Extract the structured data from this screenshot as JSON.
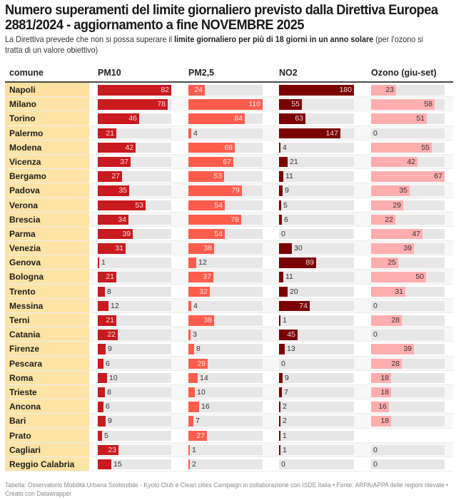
{
  "header": {
    "title": "Numero superamenti del limite giornaliero previsto dalla Direttiva Europea 2881/2024 - aggiornamento a fine NOVEMBRE 2025",
    "subtitle_pre": "La Direttiva prevede che non si possa superare il ",
    "subtitle_bold": "limite giornaliero per più di 18 giorni in un anno solare",
    "subtitle_post": " (per l'ozono si tratta di un valore obiettivo)"
  },
  "colors": {
    "PM10": "#c91a1f",
    "PM2_5": "#ff5c4d",
    "NO2": "#7a0000",
    "Ozono": "#ffadad",
    "name_column": "#fee3a5",
    "bar_background": "#e6e6e6"
  },
  "footer": {
    "text": "Tabella: Osservatorio Mobilità Urbana Sostenibile - Kyoto Club e Clean cities Campaign in collaborazione con ISDE Italia • Fonte: ARPA/APPA delle regioni rilevate • Creato con Datawrapper"
  },
  "chart_data": {
    "type": "table",
    "title": "Numero superamenti del limite giornaliero previsto dalla Direttiva Europea 2881/2024 - aggiornamento a fine NOVEMBRE 2025",
    "columns": [
      "comune",
      "PM10",
      "PM2,5",
      "NO2",
      "Ozono (giu-set)"
    ],
    "series_keys": [
      "PM10",
      "PM2_5",
      "NO2",
      "Ozono"
    ],
    "rows": [
      {
        "comune": "Napoli",
        "PM10": 82,
        "PM2_5": 24,
        "NO2": 180,
        "Ozono": 23
      },
      {
        "comune": "Milano",
        "PM10": 78,
        "PM2_5": 110,
        "NO2": 55,
        "Ozono": 58
      },
      {
        "comune": "Torino",
        "PM10": 46,
        "PM2_5": 84,
        "NO2": 63,
        "Ozono": 51
      },
      {
        "comune": "Palermo",
        "PM10": 21,
        "PM2_5": 4,
        "NO2": 147,
        "Ozono": 0
      },
      {
        "comune": "Modena",
        "PM10": 42,
        "PM2_5": 69,
        "NO2": 4,
        "Ozono": 55
      },
      {
        "comune": "Vicenza",
        "PM10": 37,
        "PM2_5": 67,
        "NO2": 21,
        "Ozono": 42
      },
      {
        "comune": "Bergamo",
        "PM10": 27,
        "PM2_5": 53,
        "NO2": 11,
        "Ozono": 67
      },
      {
        "comune": "Padova",
        "PM10": 35,
        "PM2_5": 79,
        "NO2": 9,
        "Ozono": 35
      },
      {
        "comune": "Verona",
        "PM10": 53,
        "PM2_5": 54,
        "NO2": 5,
        "Ozono": 29
      },
      {
        "comune": "Brescia",
        "PM10": 34,
        "PM2_5": 78,
        "NO2": 6,
        "Ozono": 22
      },
      {
        "comune": "Parma",
        "PM10": 39,
        "PM2_5": 54,
        "NO2": 0,
        "Ozono": 47
      },
      {
        "comune": "Venezia",
        "PM10": 31,
        "PM2_5": 38,
        "NO2": 30,
        "Ozono": 39
      },
      {
        "comune": "Genova",
        "PM10": 1,
        "PM2_5": 12,
        "NO2": 89,
        "Ozono": 25
      },
      {
        "comune": "Bologna",
        "PM10": 21,
        "PM2_5": 37,
        "NO2": 11,
        "Ozono": 50
      },
      {
        "comune": "Trento",
        "PM10": 8,
        "PM2_5": 32,
        "NO2": 20,
        "Ozono": 31
      },
      {
        "comune": "Messina",
        "PM10": 12,
        "PM2_5": 4,
        "NO2": 74,
        "Ozono": 0
      },
      {
        "comune": "Terni",
        "PM10": 21,
        "PM2_5": 38,
        "NO2": 1,
        "Ozono": 28
      },
      {
        "comune": "Catania",
        "PM10": 22,
        "PM2_5": 3,
        "NO2": 45,
        "Ozono": 0
      },
      {
        "comune": "Firenze",
        "PM10": 9,
        "PM2_5": 8,
        "NO2": 13,
        "Ozono": 39
      },
      {
        "comune": "Pescara",
        "PM10": 6,
        "PM2_5": 29,
        "NO2": 0,
        "Ozono": 28
      },
      {
        "comune": "Roma",
        "PM10": 10,
        "PM2_5": 14,
        "NO2": 9,
        "Ozono": 18
      },
      {
        "comune": "Trieste",
        "PM10": 8,
        "PM2_5": 10,
        "NO2": 7,
        "Ozono": 18
      },
      {
        "comune": "Ancona",
        "PM10": 6,
        "PM2_5": 16,
        "NO2": 2,
        "Ozono": 16
      },
      {
        "comune": "Bari",
        "PM10": 9,
        "PM2_5": 7,
        "NO2": 2,
        "Ozono": 18
      },
      {
        "comune": "Prato",
        "PM10": 5,
        "PM2_5": 27,
        "NO2": 1,
        "Ozono": null
      },
      {
        "comune": "Cagliari",
        "PM10": 23,
        "PM2_5": 1,
        "NO2": 1,
        "Ozono": 0
      },
      {
        "comune": "Reggio Calabria",
        "PM10": 15,
        "PM2_5": 2,
        "NO2": 0,
        "Ozono": 0
      }
    ],
    "column_max": {
      "PM10": 82,
      "PM2_5": 110,
      "NO2": 180,
      "Ozono": 67
    }
  }
}
